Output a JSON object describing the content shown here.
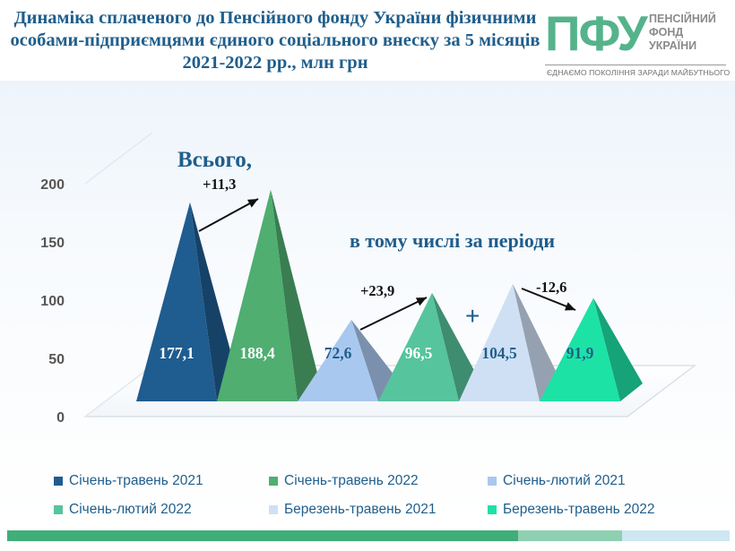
{
  "title": "Динаміка сплаченого до Пенсійного фонду України фізичними особами-підприємцями єдиного соціального внеску за 5 місяців 2021-2022 рр., млн грн",
  "logo": {
    "mark": "ПФУ",
    "name_lines": [
      "ПЕНСІЙНИЙ",
      "ФОНД",
      "УКРАЇНИ"
    ],
    "slogan": "ЄДНАЄМО ПОКОЛІННЯ ЗАРАДИ МАЙБУТНЬОГО",
    "color": "#55b38b"
  },
  "chart_data": {
    "type": "bar",
    "shape": "pyramid",
    "ylim": [
      0,
      200
    ],
    "yticks": [
      0,
      50,
      100,
      150,
      200
    ],
    "series": [
      {
        "name": "Січень-травень 2021",
        "values": [
          177.1
        ],
        "label": "177,1",
        "color": "#1f5c8f"
      },
      {
        "name": "Січень-травень 2022",
        "values": [
          188.4
        ],
        "label": "188,4",
        "color": "#4fae70"
      },
      {
        "name": "Січень-лютий 2021",
        "values": [
          72.6
        ],
        "label": "72,6",
        "color": "#a9c8ef"
      },
      {
        "name": "Січень-лютий 2022",
        "values": [
          96.5
        ],
        "label": "96,5",
        "color": "#56c49c"
      },
      {
        "name": "Березень-травень 2021",
        "values": [
          104.5
        ],
        "label": "104,5",
        "color": "#cfe0f4"
      },
      {
        "name": "Березень-травень 2022",
        "values": [
          91.9
        ],
        "label": "91,9",
        "color": "#1de2a5"
      }
    ],
    "annotations": [
      {
        "text": "Всього,"
      },
      {
        "text": "в тому числі за періоди"
      },
      {
        "text": "+11,3"
      },
      {
        "text": "+23,9"
      },
      {
        "text": "-12,6"
      },
      {
        "text": "+"
      }
    ],
    "grid": false,
    "legend_position": "bottom"
  },
  "colors": {
    "title": "#1f5e8c",
    "legend_text": "#1f5e8c",
    "bottom_bar": [
      "#3fae78",
      "#8fd0b2",
      "#cde7f3"
    ]
  }
}
